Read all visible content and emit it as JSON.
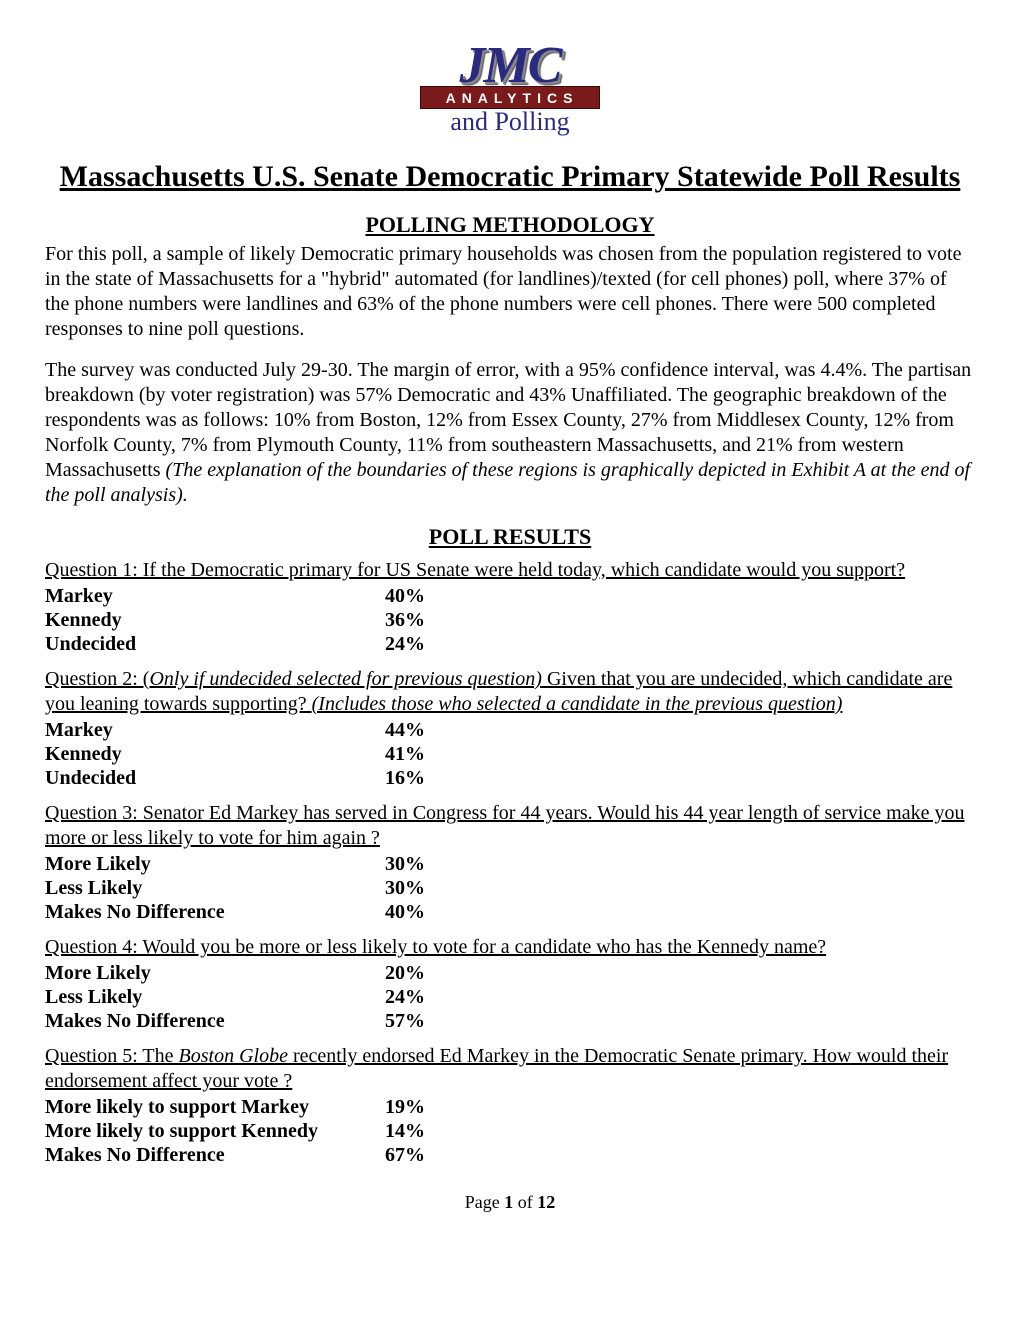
{
  "logo": {
    "line1": "JMC",
    "line2": "ANALYTICS",
    "line3": "and Polling"
  },
  "page_title": "Massachusetts U.S. Senate Democratic Primary Statewide Poll Results",
  "methodology": {
    "heading": "POLLING METHODOLOGY",
    "para1": "For this poll, a sample of likely Democratic primary households was chosen from the population registered to vote in the state of Massachusetts for a \"hybrid\" automated (for landlines)/texted (for cell phones) poll, where 37% of the phone numbers were landlines and 63% of the phone numbers were cell phones. There were 500 completed responses to nine poll questions.",
    "para2_plain": "The survey was conducted July 29-30. The margin of error, with a 95% confidence interval, was 4.4%. The partisan breakdown (by voter registration) was 57% Democratic and 43% Unaffiliated. The geographic breakdown of the respondents was as follows: 10% from Boston, 12% from Essex County, 27% from Middlesex County, 12% from Norfolk County, 7% from Plymouth County, 11% from southeastern Massachusetts, and 21% from western Massachusetts ",
    "para2_italic": "(The explanation of the boundaries of these regions is graphically depicted in Exhibit A at the end of the poll analysis)."
  },
  "results_heading": "POLL RESULTS",
  "q1": {
    "text": "Question 1: If the Democratic primary for US Senate were held today, which candidate would you support?",
    "rows": [
      {
        "label": "Markey",
        "value": "40%"
      },
      {
        "label": "Kennedy",
        "value": "36%"
      },
      {
        "label": "Undecided",
        "value": "24%"
      }
    ]
  },
  "q2": {
    "prefix": "Question 2: (",
    "italic1": "Only if undecided selected for previous question)",
    "middle": " Given that you are undecided, which candidate are you leaning towards supporting? ",
    "italic2": "(Includes those who selected a candidate in the previous question)",
    "rows": [
      {
        "label": "Markey",
        "value": "44%"
      },
      {
        "label": "Kennedy",
        "value": "41%"
      },
      {
        "label": "Undecided",
        "value": "16%"
      }
    ]
  },
  "q3": {
    "text": "Question 3: Senator Ed Markey has served in Congress for 44 years. Would his 44 year length of service make you more or less likely to vote for him again ?",
    "rows": [
      {
        "label": "More Likely",
        "value": "30%"
      },
      {
        "label": "Less Likely",
        "value": "30%"
      },
      {
        "label": "Makes No Difference",
        "value": "40%"
      }
    ]
  },
  "q4": {
    "text": "Question 4: Would you be more or less likely to vote for a candidate who has the Kennedy name?",
    "rows": [
      {
        "label": "More Likely",
        "value": "20%"
      },
      {
        "label": "Less Likely",
        "value": "24%"
      },
      {
        "label": "Makes No Difference",
        "value": "57%"
      }
    ]
  },
  "q5": {
    "prefix": "Question 5: The ",
    "italic": "Boston Globe",
    "suffix": " recently endorsed Ed Markey in the Democratic Senate primary. How would their endorsement affect your vote ?",
    "rows": [
      {
        "label": "More likely to support Markey",
        "value": "19%"
      },
      {
        "label": "More likely to support Kennedy",
        "value": "14%"
      },
      {
        "label": "Makes No Difference",
        "value": "67%"
      }
    ]
  },
  "pagination": {
    "prefix": "Page ",
    "current": "1",
    "middle": " of ",
    "total": "12"
  }
}
